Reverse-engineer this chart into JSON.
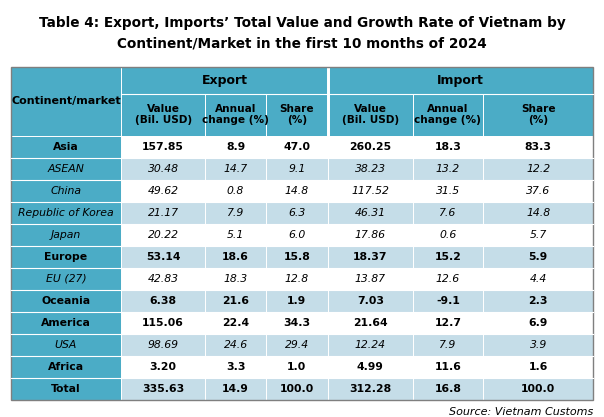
{
  "title_line1": "Table 4: Export, Imports’ Total Value and Growth Rate of Vietnam by",
  "title_line2": "Continent/Market in the first 10 months of 2024",
  "source": "Source: Vietnam Customs",
  "header_color": "#4bacc6",
  "white": "#FFFFFF",
  "light_blue": "#c5dde8",
  "rows": [
    {
      "label": "Asia",
      "italic": false,
      "bold": true,
      "vals": [
        "157.85",
        "8.9",
        "47.0",
        "260.25",
        "18.3",
        "83.3"
      ],
      "bg": "#FFFFFF"
    },
    {
      "label": "ASEAN",
      "italic": true,
      "bold": false,
      "vals": [
        "30.48",
        "14.7",
        "9.1",
        "38.23",
        "13.2",
        "12.2"
      ],
      "bg": "#c5dde8"
    },
    {
      "label": "China",
      "italic": true,
      "bold": false,
      "vals": [
        "49.62",
        "0.8",
        "14.8",
        "117.52",
        "31.5",
        "37.6"
      ],
      "bg": "#FFFFFF"
    },
    {
      "label": "Republic of Korea",
      "italic": true,
      "bold": false,
      "vals": [
        "21.17",
        "7.9",
        "6.3",
        "46.31",
        "7.6",
        "14.8"
      ],
      "bg": "#c5dde8"
    },
    {
      "label": "Japan",
      "italic": true,
      "bold": false,
      "vals": [
        "20.22",
        "5.1",
        "6.0",
        "17.86",
        "0.6",
        "5.7"
      ],
      "bg": "#FFFFFF"
    },
    {
      "label": "Europe",
      "italic": false,
      "bold": true,
      "vals": [
        "53.14",
        "18.6",
        "15.8",
        "18.37",
        "15.2",
        "5.9"
      ],
      "bg": "#c5dde8"
    },
    {
      "label": "EU (27)",
      "italic": true,
      "bold": false,
      "vals": [
        "42.83",
        "18.3",
        "12.8",
        "13.87",
        "12.6",
        "4.4"
      ],
      "bg": "#FFFFFF"
    },
    {
      "label": "Oceania",
      "italic": false,
      "bold": true,
      "vals": [
        "6.38",
        "21.6",
        "1.9",
        "7.03",
        "-9.1",
        "2.3"
      ],
      "bg": "#c5dde8"
    },
    {
      "label": "America",
      "italic": false,
      "bold": true,
      "vals": [
        "115.06",
        "22.4",
        "34.3",
        "21.64",
        "12.7",
        "6.9"
      ],
      "bg": "#FFFFFF"
    },
    {
      "label": "USA",
      "italic": true,
      "bold": false,
      "vals": [
        "98.69",
        "24.6",
        "29.4",
        "12.24",
        "7.9",
        "3.9"
      ],
      "bg": "#c5dde8"
    },
    {
      "label": "Africa",
      "italic": false,
      "bold": true,
      "vals": [
        "3.20",
        "3.3",
        "1.0",
        "4.99",
        "11.6",
        "1.6"
      ],
      "bg": "#FFFFFF"
    },
    {
      "label": "Total",
      "italic": false,
      "bold": true,
      "vals": [
        "335.63",
        "14.9",
        "100.0",
        "312.28",
        "16.8",
        "100.0"
      ],
      "bg": "#c5dde8"
    }
  ],
  "col_headers": [
    "Value\n(Bil. USD)",
    "Annual\nchange (%)",
    "Share\n(%)",
    "Value\n(Bil. USD)",
    "Annual\nchange (%)",
    "Share\n(%)"
  ],
  "export_label": "Export",
  "import_label": "Import",
  "continent_label": "Continent/market"
}
